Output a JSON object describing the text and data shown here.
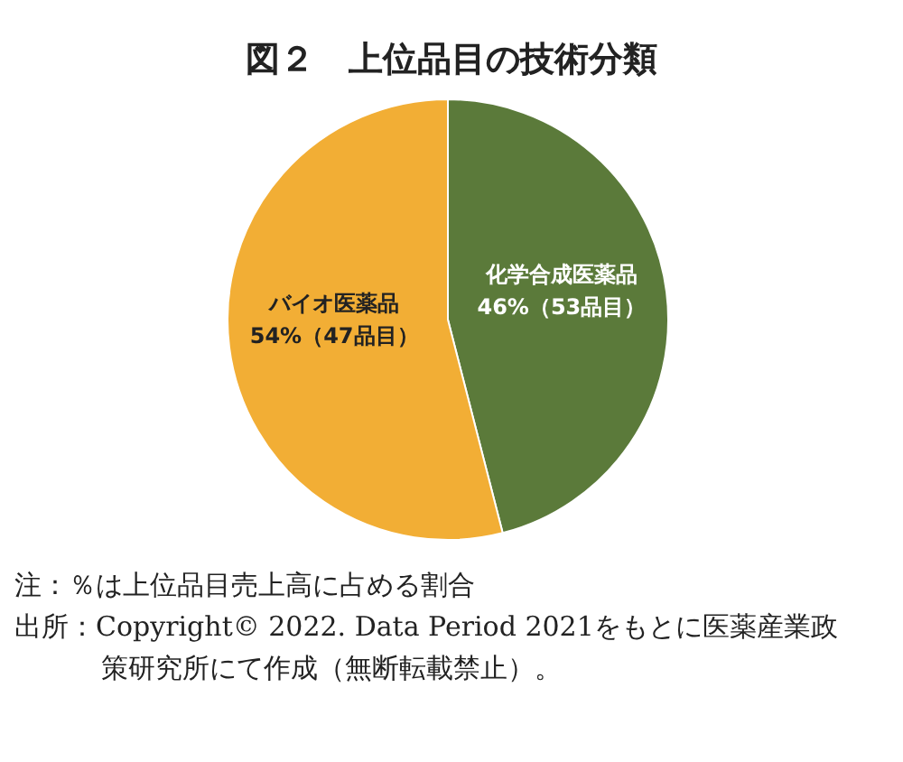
{
  "chart_data": {
    "type": "pie",
    "title": "図２　上位品目の技術分類",
    "categories": [
      "化学合成医薬品",
      "バイオ医薬品"
    ],
    "values": [
      46,
      54
    ],
    "value_labels": [
      "46%（53品目）",
      "54%（47品目）"
    ],
    "colors": [
      "#5b7a3a",
      "#f2ae35"
    ],
    "annotations": [
      "注：％は上位品目売上高に占める割合",
      "出所：Copyright© 2022. Data Period 2021をもとに医薬産業政策研究所にて作成（無断転載禁止）。"
    ]
  }
}
